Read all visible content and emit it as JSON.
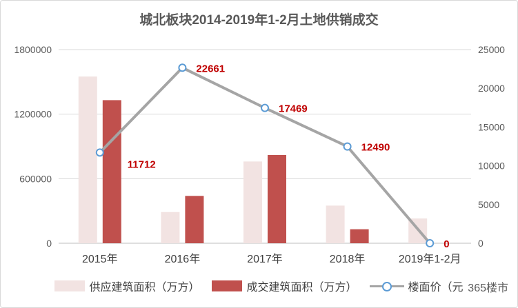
{
  "chart_data": {
    "type": "bar",
    "title": "城北板块2014-2019年1-2月土地供销成交",
    "categories": [
      "2015年",
      "2016年",
      "2017年",
      "2018年",
      "2019年1-2月"
    ],
    "series": [
      {
        "name": "供应建筑面积（万方）",
        "type": "bar",
        "axis": "left",
        "color": "#f2e3e2",
        "values": [
          1550000,
          290000,
          760000,
          350000,
          230000
        ]
      },
      {
        "name": "成交建筑面积（万方）",
        "type": "bar",
        "axis": "left",
        "color": "#c0504d",
        "values": [
          1330000,
          440000,
          820000,
          130000,
          0
        ]
      },
      {
        "name": "楼面价（元",
        "type": "line",
        "axis": "right",
        "color": "#a5a5a5",
        "marker_color": "#5b9bd5",
        "values": [
          11712,
          22661,
          17469,
          12490,
          0
        ],
        "labels": [
          "11712",
          "22661",
          "17469",
          "12490",
          "0"
        ],
        "label_color": "#c00000"
      }
    ],
    "y_left": {
      "min": 0,
      "max": 1800000,
      "ticks": [
        "0",
        "600000",
        "1200000",
        "1800000"
      ]
    },
    "y_right": {
      "min": 0,
      "max": 25000,
      "ticks": [
        "0",
        "5000",
        "10000",
        "15000",
        "20000",
        "25000"
      ]
    },
    "grid": true,
    "legend": "bottom"
  },
  "watermark": "365楼市"
}
